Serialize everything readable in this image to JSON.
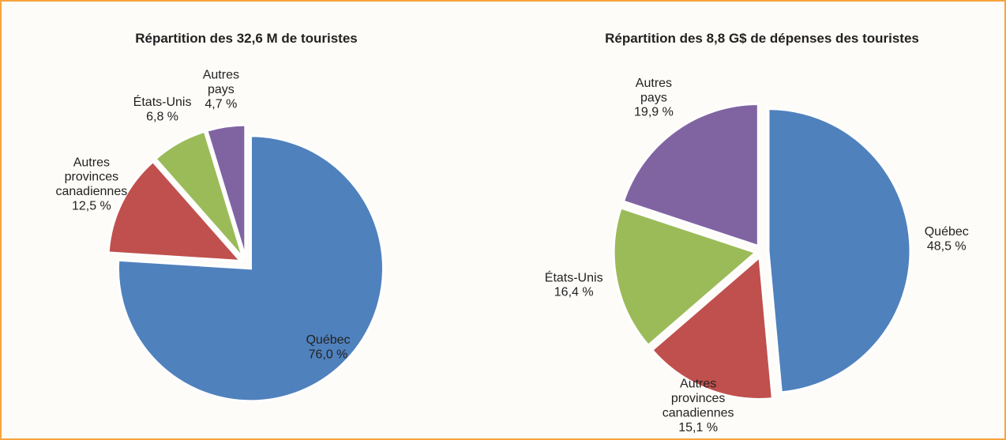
{
  "chart_data": [
    {
      "type": "pie",
      "title": "Répartition des 32,6 M de touristes",
      "categories": [
        "Québec",
        "Autres provinces canadiennes",
        "États-Unis",
        "Autres pays"
      ],
      "values": [
        76.0,
        12.5,
        6.8,
        4.7
      ],
      "value_labels": [
        "76,0 %",
        "12,5 %",
        "6,8 %",
        "4,7 %"
      ],
      "colors": [
        "#4f81bd",
        "#c0504d",
        "#9bbb59",
        "#8064a2"
      ]
    },
    {
      "type": "pie",
      "title": "Répartition des 8,8 G$ de dépenses des touristes",
      "categories": [
        "Québec",
        "Autres provinces canadiennes",
        "États-Unis",
        "Autres pays"
      ],
      "values": [
        48.5,
        15.1,
        16.4,
        19.9
      ],
      "value_labels": [
        "48,5 %",
        "15,1 %",
        "16,4 %",
        "19,9 %"
      ],
      "colors": [
        "#4f81bd",
        "#c0504d",
        "#9bbb59",
        "#8064a2"
      ]
    }
  ]
}
